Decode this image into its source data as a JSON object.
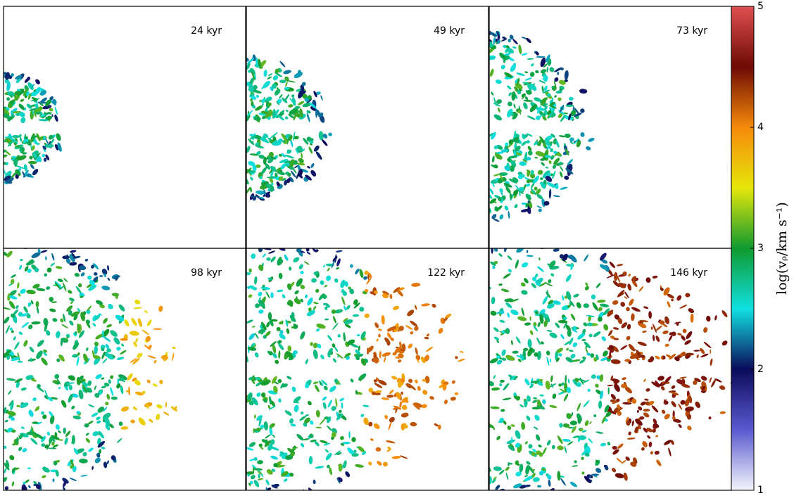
{
  "panels": [
    {
      "label": "24 kyr"
    },
    {
      "label": "49 kyr"
    },
    {
      "label": "73 kyr"
    },
    {
      "label": "98 kyr"
    },
    {
      "label": "122 kyr"
    },
    {
      "label": "146 kyr"
    }
  ],
  "colorbar": {
    "label": "log(vᵨ/km s⁻¹)",
    "lim": [
      1,
      5
    ],
    "ticks": [
      1,
      2,
      3,
      4,
      5
    ],
    "colormap": [
      "#f4f4fb",
      "#5a5ad0",
      "#0b0b5c",
      "#10e0e0",
      "#0f9a2f",
      "#e6e60a",
      "#f58a0a",
      "#6e0a05",
      "#e05050"
    ]
  }
}
